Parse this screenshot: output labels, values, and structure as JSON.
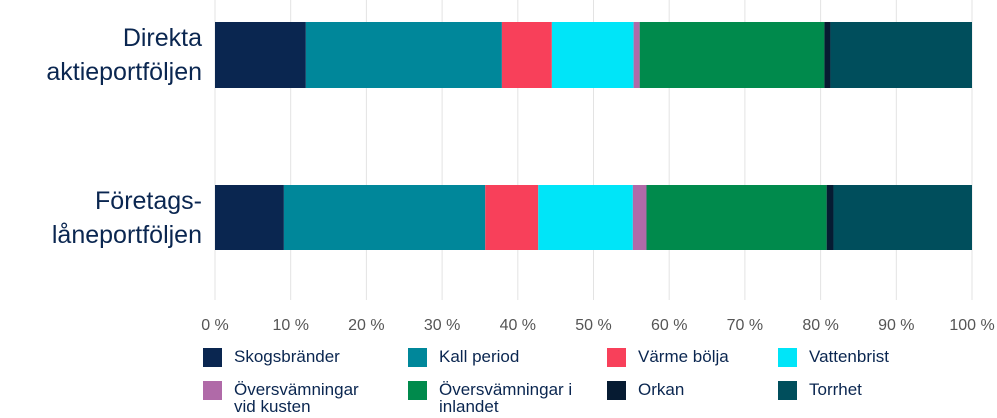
{
  "chart_data": {
    "type": "stacked-bar-horizontal",
    "categories": [
      "Direkta aktieportföljen",
      "Företags-låneportföljen"
    ],
    "series": [
      {
        "name": "Skogsbränder",
        "color": "#0a2650",
        "values": [
          12.0,
          9.1
        ]
      },
      {
        "name": "Kall period",
        "color": "#00879a",
        "values": [
          25.9,
          26.6
        ]
      },
      {
        "name": "Värme bölja",
        "color": "#f8405a",
        "values": [
          6.6,
          7.0
        ]
      },
      {
        "name": "Vattenbrist",
        "color": "#00e5f8",
        "values": [
          10.8,
          12.5
        ]
      },
      {
        "name": "Översvämningar vid kusten",
        "color": "#b06aa8",
        "values": [
          0.8,
          1.8
        ]
      },
      {
        "name": "Översvämningar i inlandet",
        "color": "#008a4c",
        "values": [
          24.4,
          23.8
        ]
      },
      {
        "name": "Orkan",
        "color": "#061b32",
        "values": [
          0.8,
          0.9
        ]
      },
      {
        "name": "Torrhet",
        "color": "#004e5c",
        "values": [
          18.7,
          18.3
        ]
      }
    ],
    "xlim": [
      0,
      100
    ],
    "xticks": [
      {
        "value": 0,
        "label": "0 %"
      },
      {
        "value": 10,
        "label": "10 %"
      },
      {
        "value": 20,
        "label": "20 %"
      },
      {
        "value": 30,
        "label": "30 %"
      },
      {
        "value": 40,
        "label": "40 %"
      },
      {
        "value": 50,
        "label": "50 %"
      },
      {
        "value": 60,
        "label": "60 %"
      },
      {
        "value": 70,
        "label": "70 %"
      },
      {
        "value": 80,
        "label": "80 %"
      },
      {
        "value": 90,
        "label": "90 %"
      },
      {
        "value": 100,
        "label": "100 %"
      }
    ],
    "grid": true
  }
}
